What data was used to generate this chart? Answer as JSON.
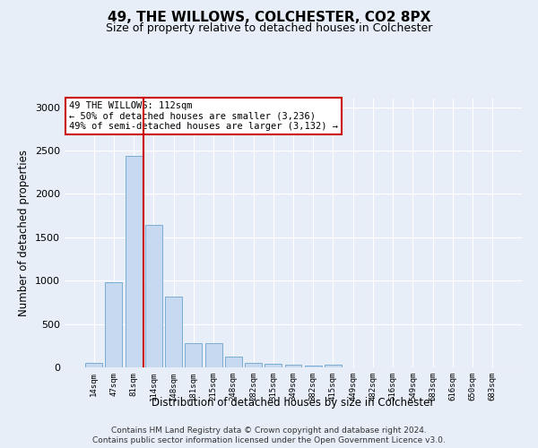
{
  "title1": "49, THE WILLOWS, COLCHESTER, CO2 8PX",
  "title2": "Size of property relative to detached houses in Colchester",
  "xlabel": "Distribution of detached houses by size in Colchester",
  "ylabel": "Number of detached properties",
  "footnote1": "Contains HM Land Registry data © Crown copyright and database right 2024.",
  "footnote2": "Contains public sector information licensed under the Open Government Licence v3.0.",
  "bar_labels": [
    "14sqm",
    "47sqm",
    "81sqm",
    "114sqm",
    "148sqm",
    "181sqm",
    "215sqm",
    "248sqm",
    "282sqm",
    "315sqm",
    "349sqm",
    "382sqm",
    "415sqm",
    "449sqm",
    "482sqm",
    "516sqm",
    "549sqm",
    "583sqm",
    "616sqm",
    "650sqm",
    "683sqm"
  ],
  "bar_values": [
    55,
    980,
    2440,
    1640,
    820,
    280,
    280,
    120,
    55,
    45,
    30,
    20,
    30,
    0,
    0,
    0,
    0,
    0,
    0,
    0,
    0
  ],
  "bar_color": "#c6d9f0",
  "bar_edge_color": "#7aadd4",
  "vline_x_index": 2,
  "vline_color": "#cc0000",
  "annotation_text": "49 THE WILLOWS: 112sqm\n← 50% of detached houses are smaller (3,236)\n49% of semi-detached houses are larger (3,132) →",
  "annotation_box_color": "#ffffff",
  "annotation_box_edge": "#cc0000",
  "ylim": [
    0,
    3100
  ],
  "yticks": [
    0,
    500,
    1000,
    1500,
    2000,
    2500,
    3000
  ],
  "background_color": "#e8eef8",
  "plot_bg_color": "#e8eef8",
  "title1_fontsize": 11,
  "title2_fontsize": 9
}
